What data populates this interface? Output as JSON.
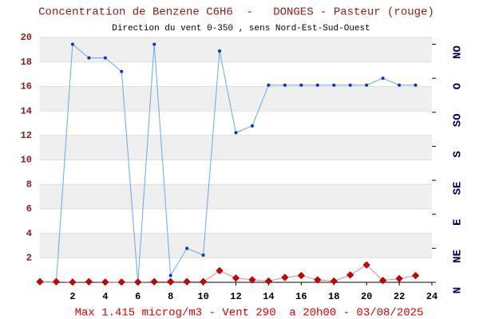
{
  "chart_data": {
    "type": "line",
    "title": "Concentration de Benzene C6H6  -   DONGES - Pasteur (rouge)",
    "subtitle": "Direction du vent 0-350 , sens Nord-Est-Sud-Ouest",
    "footer": "Max 1.415 microg/m3 - Vent 290  a 20h00 - 03/08/2025",
    "x": [
      0,
      1,
      2,
      3,
      4,
      5,
      6,
      7,
      8,
      9,
      10,
      11,
      12,
      13,
      14,
      15,
      16,
      17,
      18,
      19,
      20,
      21,
      22,
      23
    ],
    "xlim": [
      0,
      24
    ],
    "xticks": [
      2,
      4,
      6,
      8,
      10,
      12,
      14,
      16,
      18,
      20,
      22,
      24
    ],
    "ylim": [
      0,
      20
    ],
    "yticks": [
      2,
      4,
      6,
      8,
      10,
      12,
      14,
      16,
      18,
      20
    ],
    "y2lim": [
      0,
      360
    ],
    "y2ticks": [
      {
        "value": 0,
        "label": "N"
      },
      {
        "value": 50,
        "label": "NE"
      },
      {
        "value": 100,
        "label": "E"
      },
      {
        "value": 150,
        "label": "SE"
      },
      {
        "value": 200,
        "label": "S"
      },
      {
        "value": 250,
        "label": "SO"
      },
      {
        "value": 300,
        "label": "O"
      },
      {
        "value": 350,
        "label": "NO"
      }
    ],
    "grid": true,
    "series": [
      {
        "name": "Benzene",
        "color": "#cc0000",
        "values": [
          0.05,
          0.05,
          0.02,
          0.05,
          0.02,
          0.02,
          0.02,
          0.05,
          0.05,
          0.05,
          0.05,
          0.95,
          0.35,
          0.2,
          0.1,
          0.4,
          0.55,
          0.2,
          0.1,
          0.6,
          1.415,
          0.15,
          0.3,
          0.55
        ]
      },
      {
        "name": "Vent",
        "color": "#0033cc",
        "axis": "y2",
        "values": [
          0,
          0,
          350,
          330,
          330,
          310,
          0,
          350,
          10,
          50,
          40,
          340,
          220,
          230,
          290,
          290,
          290,
          290,
          290,
          290,
          290,
          300,
          290,
          290
        ]
      }
    ]
  }
}
